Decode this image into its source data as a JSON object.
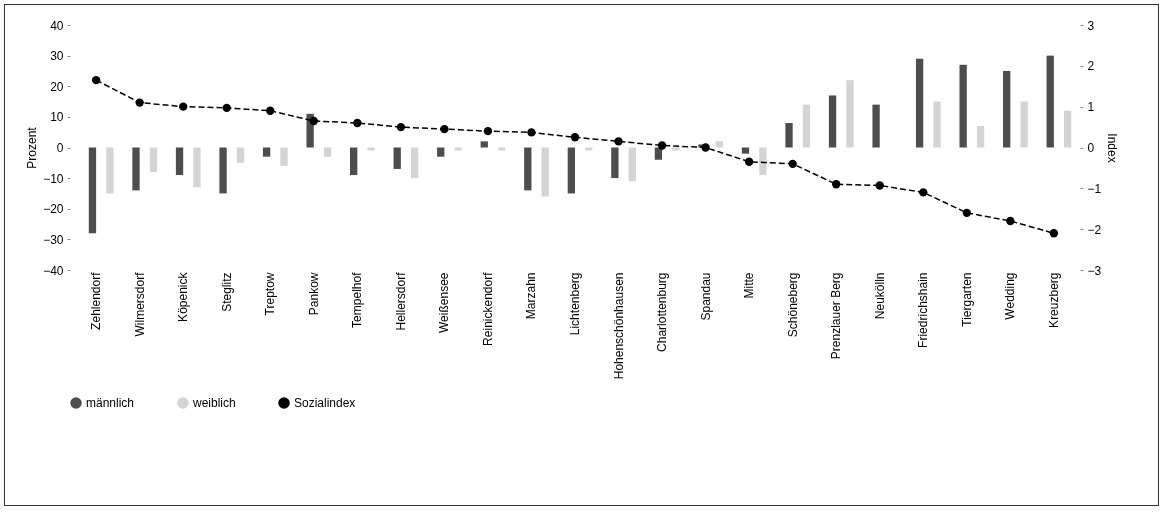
{
  "chart_data": {
    "type": "bar",
    "ylabel": "Prozent",
    "y2label": "Index",
    "categories": [
      "Zehlendorf",
      "Wilmersdorf",
      "Köpenick",
      "Steglitz",
      "Treptow",
      "Pankow",
      "Tempelhof",
      "Hellersdorf",
      "Weißensee",
      "Reinickendorf",
      "Marzahn",
      "Lichtenberg",
      "Hohenschönhausen",
      "Charlottenburg",
      "Spandau",
      "Mitte",
      "Schöneberg",
      "Prenzlauer Berg",
      "Neukölln",
      "Friedrichshain",
      "Tiergarten",
      "Wedding",
      "Kreuzberg"
    ],
    "series": [
      {
        "name": "männlich",
        "color": "#4d4d4d",
        "values": [
          -28,
          -14,
          -9,
          -15,
          -3,
          11,
          -9,
          -7,
          -3,
          2,
          -14,
          -15,
          -10,
          -4,
          1,
          -2,
          8,
          17,
          14,
          29,
          27,
          25,
          30
        ]
      },
      {
        "name": "weiblich",
        "color": "#d4d4d4",
        "values": [
          -15,
          -8,
          -13,
          -5,
          -6,
          -3,
          -1,
          -10,
          -1,
          -1,
          -16,
          -1,
          -11,
          -1,
          2,
          -9,
          14,
          22,
          0,
          15,
          7,
          15,
          12
        ]
      },
      {
        "name": "Sozialindex",
        "type": "line",
        "axis": "y2",
        "color": "#000000",
        "values": [
          1.65,
          1.1,
          1.0,
          0.97,
          0.9,
          0.65,
          0.6,
          0.5,
          0.45,
          0.4,
          0.37,
          0.25,
          0.15,
          0.05,
          0.0,
          -0.35,
          -0.4,
          -0.9,
          -0.93,
          -1.1,
          -1.6,
          -1.8,
          -2.1
        ]
      }
    ],
    "ylim": [
      -40,
      40
    ],
    "yticks": [
      -40,
      -30,
      -20,
      -10,
      0,
      10,
      20,
      30,
      40
    ],
    "y2lim": [
      -3,
      3
    ],
    "y2ticks": [
      -3,
      -2,
      -1,
      0,
      1,
      2,
      3
    ],
    "grid": false,
    "legend": "bottom",
    "marker": "circle",
    "line_style": "dashed"
  }
}
